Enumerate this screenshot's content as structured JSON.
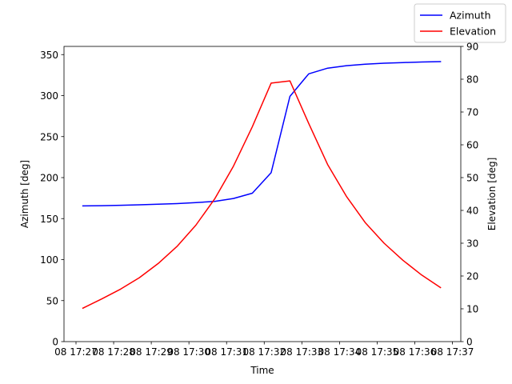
{
  "chart_data": {
    "type": "line",
    "xlabel": "Time",
    "ylabel_left": "Azimuth [deg]",
    "ylabel_right": "Elevation [deg]",
    "x_tick_labels": [
      "08 17:27",
      "08 17:28",
      "08 17:29",
      "08 17:30",
      "08 17:31",
      "08 17:32",
      "08 17:33",
      "08 17:34",
      "08 17:35",
      "08 17:36",
      "08 17:37"
    ],
    "x_tick_minutes": [
      27,
      28,
      29,
      30,
      31,
      32,
      33,
      34,
      35,
      36,
      37
    ],
    "xlim_minutes": [
      27,
      37
    ],
    "ylim_left": [
      0,
      360
    ],
    "yticks_left": [
      0,
      50,
      100,
      150,
      200,
      250,
      300,
      350
    ],
    "ylim_right": [
      0,
      90
    ],
    "yticks_right": [
      0,
      10,
      20,
      30,
      40,
      50,
      60,
      70,
      80,
      90
    ],
    "grid": false,
    "legend_position": "top-right",
    "series": [
      {
        "name": "Azimuth",
        "axis": "left",
        "color": "#0000ff",
        "x_minutes": [
          27.183,
          27.683,
          28.183,
          28.683,
          29.183,
          29.683,
          30.183,
          30.683,
          31.183,
          31.683,
          32.183,
          32.683,
          33.183,
          33.683,
          34.183,
          34.683,
          35.183,
          35.683,
          36.183,
          36.683
        ],
        "values": [
          165.5,
          165.8,
          166.2,
          166.8,
          167.5,
          168.3,
          169.5,
          171.0,
          174.5,
          181.0,
          206.0,
          299.0,
          326.5,
          333.5,
          336.5,
          338.3,
          339.5,
          340.3,
          341.0,
          341.5
        ]
      },
      {
        "name": "Elevation",
        "axis": "right",
        "color": "#ff0000",
        "x_minutes": [
          27.183,
          27.683,
          28.183,
          28.683,
          29.183,
          29.683,
          30.183,
          30.683,
          31.183,
          31.683,
          32.183,
          32.683,
          33.183,
          33.683,
          34.183,
          34.683,
          35.183,
          35.683,
          36.183,
          36.683
        ],
        "values": [
          10.2,
          13.0,
          16.0,
          19.5,
          23.8,
          29.0,
          35.5,
          43.5,
          53.5,
          65.5,
          78.8,
          79.5,
          66.5,
          54.0,
          44.3,
          36.3,
          30.0,
          24.8,
          20.3,
          16.5
        ]
      }
    ]
  }
}
